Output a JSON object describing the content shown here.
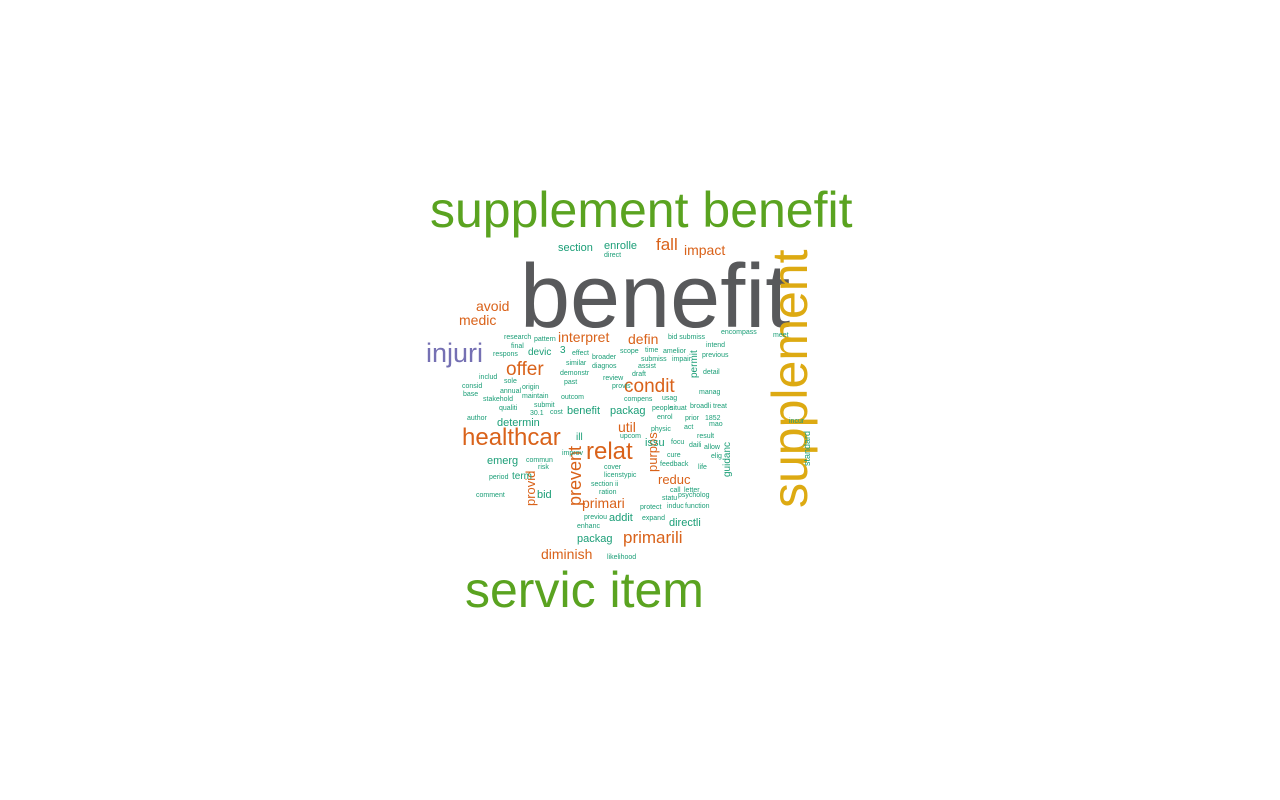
{
  "palette": {
    "gray": "#58595b",
    "green": "#5aa320",
    "gold": "#ddaa12",
    "orange": "#d9621a",
    "purple": "#7570b3",
    "teal": "#1b9e77"
  },
  "words": [
    {
      "text": "benefit",
      "color": "gray"
    },
    {
      "text": "supplement benefit",
      "color": "green"
    },
    {
      "text": "servic item",
      "color": "green"
    },
    {
      "text": "supplement",
      "color": "gold"
    },
    {
      "text": "injuri",
      "color": "purple"
    },
    {
      "text": "healthcar",
      "color": "orange"
    },
    {
      "text": "relat",
      "color": "orange"
    },
    {
      "text": "condit",
      "color": "orange"
    },
    {
      "text": "offer",
      "color": "orange"
    },
    {
      "text": "primarili",
      "color": "orange"
    },
    {
      "text": "prevent",
      "color": "orange"
    },
    {
      "text": "fall",
      "color": "orange"
    },
    {
      "text": "impact",
      "color": "orange"
    },
    {
      "text": "avoid",
      "color": "orange"
    },
    {
      "text": "medic",
      "color": "orange"
    },
    {
      "text": "interpret",
      "color": "orange"
    },
    {
      "text": "defin",
      "color": "orange"
    },
    {
      "text": "util",
      "color": "orange"
    },
    {
      "text": "reduc",
      "color": "orange"
    },
    {
      "text": "primari",
      "color": "orange"
    },
    {
      "text": "diminish",
      "color": "orange"
    },
    {
      "text": "purpos",
      "color": "orange"
    },
    {
      "text": "provid",
      "color": "orange"
    },
    {
      "text": "section",
      "color": "teal"
    },
    {
      "text": "enrolle",
      "color": "teal"
    },
    {
      "text": "direct",
      "color": "teal"
    },
    {
      "text": "devic",
      "color": "teal"
    },
    {
      "text": "3",
      "color": "teal"
    },
    {
      "text": "benefit",
      "color": "teal"
    },
    {
      "text": "packag",
      "color": "teal"
    },
    {
      "text": "determin",
      "color": "teal"
    },
    {
      "text": "term",
      "color": "teal"
    },
    {
      "text": "emerg",
      "color": "teal"
    },
    {
      "text": "issu",
      "color": "teal"
    },
    {
      "text": "bid",
      "color": "teal"
    },
    {
      "text": "addit",
      "color": "teal"
    },
    {
      "text": "directli",
      "color": "teal"
    },
    {
      "text": "packag",
      "color": "teal"
    },
    {
      "text": "guidanc",
      "color": "teal"
    },
    {
      "text": "standard",
      "color": "teal"
    },
    {
      "text": "permit",
      "color": "teal"
    },
    {
      "text": "ill",
      "color": "teal"
    },
    {
      "text": "research",
      "color": "teal"
    },
    {
      "text": "pattern",
      "color": "teal"
    },
    {
      "text": "final",
      "color": "teal"
    },
    {
      "text": "respons",
      "color": "teal"
    },
    {
      "text": "bid submiss",
      "color": "teal"
    },
    {
      "text": "encompass",
      "color": "teal"
    },
    {
      "text": "meet",
      "color": "teal"
    },
    {
      "text": "intend",
      "color": "teal"
    },
    {
      "text": "scope",
      "color": "teal"
    },
    {
      "text": "time",
      "color": "teal"
    },
    {
      "text": "amelior",
      "color": "teal"
    },
    {
      "text": "previous",
      "color": "teal"
    },
    {
      "text": "effect",
      "color": "teal"
    },
    {
      "text": "broader",
      "color": "teal"
    },
    {
      "text": "submiss",
      "color": "teal"
    },
    {
      "text": "impair",
      "color": "teal"
    },
    {
      "text": "similar",
      "color": "teal"
    },
    {
      "text": "diagnos",
      "color": "teal"
    },
    {
      "text": "assist",
      "color": "teal"
    },
    {
      "text": "detail",
      "color": "teal"
    },
    {
      "text": "demonstr",
      "color": "teal"
    },
    {
      "text": "draft",
      "color": "teal"
    },
    {
      "text": "includ",
      "color": "teal"
    },
    {
      "text": "sole",
      "color": "teal"
    },
    {
      "text": "past",
      "color": "teal"
    },
    {
      "text": "review",
      "color": "teal"
    },
    {
      "text": "consid",
      "color": "teal"
    },
    {
      "text": "origin",
      "color": "teal"
    },
    {
      "text": "provis",
      "color": "teal"
    },
    {
      "text": "base",
      "color": "teal"
    },
    {
      "text": "annual",
      "color": "teal"
    },
    {
      "text": "usag",
      "color": "teal"
    },
    {
      "text": "manag",
      "color": "teal"
    },
    {
      "text": "stakehold",
      "color": "teal"
    },
    {
      "text": "maintain",
      "color": "teal"
    },
    {
      "text": "outcom",
      "color": "teal"
    },
    {
      "text": "compens",
      "color": "teal"
    },
    {
      "text": "submit",
      "color": "teal"
    },
    {
      "text": "qualiti",
      "color": "teal"
    },
    {
      "text": "cost",
      "color": "teal"
    },
    {
      "text": "people",
      "color": "teal"
    },
    {
      "text": "situat",
      "color": "teal"
    },
    {
      "text": "broadli",
      "color": "teal"
    },
    {
      "text": "treat",
      "color": "teal"
    },
    {
      "text": "30.1",
      "color": "teal"
    },
    {
      "text": "enrol",
      "color": "teal"
    },
    {
      "text": "prior",
      "color": "teal"
    },
    {
      "text": "1852",
      "color": "teal"
    },
    {
      "text": "author",
      "color": "teal"
    },
    {
      "text": "physic",
      "color": "teal"
    },
    {
      "text": "act",
      "color": "teal"
    },
    {
      "text": "mao",
      "color": "teal"
    },
    {
      "text": "incur",
      "color": "teal"
    },
    {
      "text": "upcom",
      "color": "teal"
    },
    {
      "text": "result",
      "color": "teal"
    },
    {
      "text": "focu",
      "color": "teal"
    },
    {
      "text": "daili",
      "color": "teal"
    },
    {
      "text": "allow",
      "color": "teal"
    },
    {
      "text": "commun",
      "color": "teal"
    },
    {
      "text": "improv",
      "color": "teal"
    },
    {
      "text": "cure",
      "color": "teal"
    },
    {
      "text": "elig",
      "color": "teal"
    },
    {
      "text": "risk",
      "color": "teal"
    },
    {
      "text": "cover",
      "color": "teal"
    },
    {
      "text": "feedback",
      "color": "teal"
    },
    {
      "text": "life",
      "color": "teal"
    },
    {
      "text": "period",
      "color": "teal"
    },
    {
      "text": "licens",
      "color": "teal"
    },
    {
      "text": "typic",
      "color": "teal"
    },
    {
      "text": "section ii",
      "color": "teal"
    },
    {
      "text": "call",
      "color": "teal"
    },
    {
      "text": "letter",
      "color": "teal"
    },
    {
      "text": "statu",
      "color": "teal"
    },
    {
      "text": "psycholog",
      "color": "teal"
    },
    {
      "text": "comment",
      "color": "teal"
    },
    {
      "text": "ration",
      "color": "teal"
    },
    {
      "text": "induc",
      "color": "teal"
    },
    {
      "text": "function",
      "color": "teal"
    },
    {
      "text": "protect",
      "color": "teal"
    },
    {
      "text": "previou",
      "color": "teal"
    },
    {
      "text": "expand",
      "color": "teal"
    },
    {
      "text": "enhanc",
      "color": "teal"
    },
    {
      "text": "likelihood",
      "color": "teal"
    }
  ]
}
